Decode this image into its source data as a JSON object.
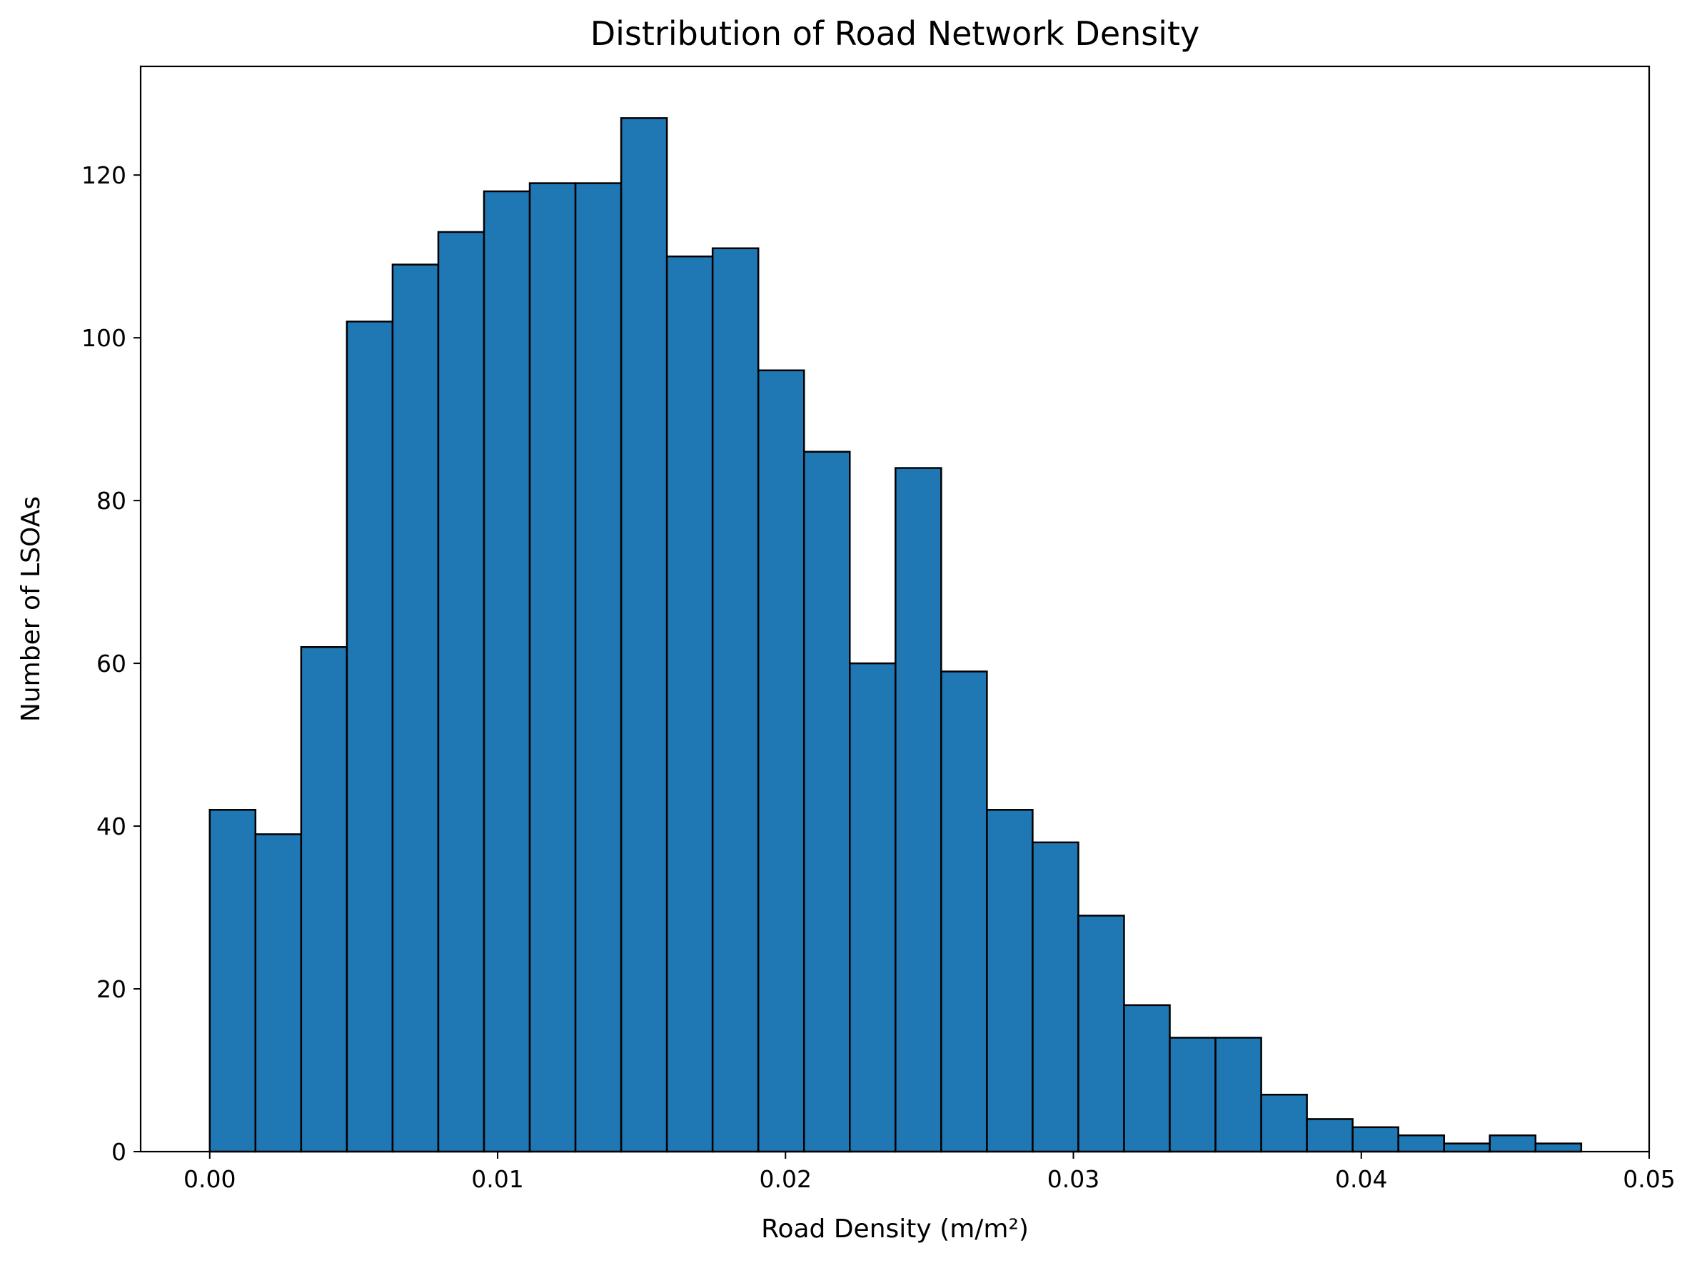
{
  "chart_data": {
    "type": "bar",
    "title": "Distribution of Road Network Density",
    "xlabel": "Road Density (m/m²)",
    "ylabel": "Number of LSOAs",
    "xlim": [
      -0.0024,
      0.05
    ],
    "ylim": [
      0,
      133.35
    ],
    "bar_color": "#1f77b4",
    "edge_color": "#000000",
    "grid": false,
    "x_ticks": [
      {
        "value": 0.0,
        "label": "0.00"
      },
      {
        "value": 0.01,
        "label": "0.01"
      },
      {
        "value": 0.02,
        "label": "0.02"
      },
      {
        "value": 0.03,
        "label": "0.03"
      },
      {
        "value": 0.04,
        "label": "0.04"
      },
      {
        "value": 0.05,
        "label": "0.05"
      }
    ],
    "y_ticks": [
      {
        "value": 0,
        "label": "0"
      },
      {
        "value": 20,
        "label": "20"
      },
      {
        "value": 40,
        "label": "40"
      },
      {
        "value": 60,
        "label": "60"
      },
      {
        "value": 80,
        "label": "80"
      },
      {
        "value": 100,
        "label": "100"
      },
      {
        "value": 120,
        "label": "120"
      }
    ],
    "bin_start": 0.0,
    "bin_width": 0.001588,
    "values": [
      42,
      39,
      62,
      102,
      109,
      113,
      118,
      119,
      119,
      127,
      110,
      111,
      96,
      86,
      60,
      84,
      59,
      42,
      38,
      29,
      18,
      14,
      14,
      7,
      4,
      3,
      2,
      1,
      2,
      1
    ]
  }
}
